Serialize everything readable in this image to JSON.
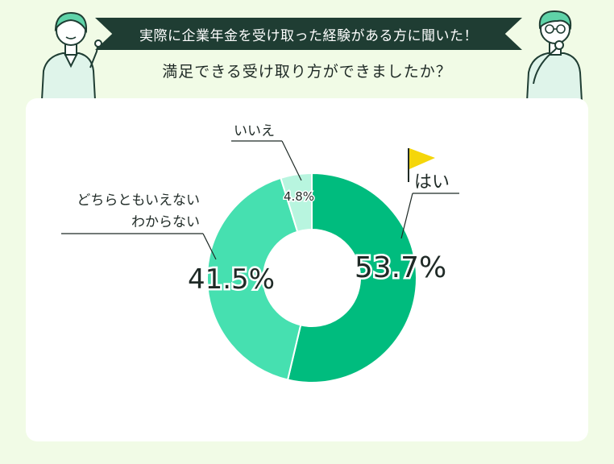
{
  "header": {
    "banner_text": "実際に企業年金を受け取った経験がある方に聞いた！",
    "question": "満足できる受け取り方ができましたか？"
  },
  "colors": {
    "background": "#f1fbe6",
    "banner": "#1f3d33",
    "hai": "#00bc7e",
    "dochira": "#46e0b0",
    "iie": "#b8f5df",
    "flag": "#f5d60a"
  },
  "chart_data": {
    "type": "donut",
    "categories": [
      "はい",
      "どちらともいえない わからない",
      "いいえ"
    ],
    "values": [
      53.7,
      41.5,
      4.8
    ],
    "labels": {
      "hai": "はい",
      "dochira_line1": "どちらともいえない",
      "dochira_line2": "わからない",
      "iie": "いいえ"
    },
    "value_labels": [
      "53.7%",
      "41.5%",
      "4.8%"
    ]
  }
}
